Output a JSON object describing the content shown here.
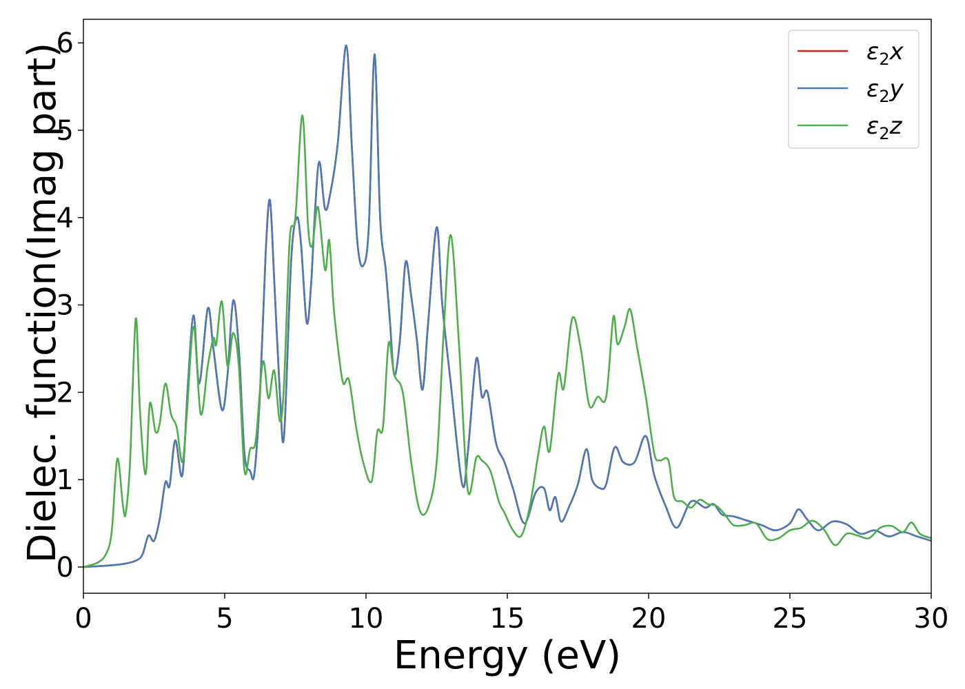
{
  "chart_data": {
    "type": "line",
    "title": "",
    "xlabel": "Energy (eV)",
    "ylabel": "Dielec. function(Imag part)",
    "xlim": [
      0,
      30
    ],
    "ylim": [
      -0.3,
      6.27
    ],
    "xticks": [
      0,
      5,
      10,
      15,
      20,
      25,
      30
    ],
    "yticks": [
      0,
      1,
      2,
      3,
      4,
      5,
      6
    ],
    "grid": false,
    "legend_position": "top-right",
    "series": [
      {
        "name": "ε₂x",
        "legend_base": "ε",
        "legend_sub": "2",
        "legend_var": "x",
        "color": "#e41a1c",
        "x": [
          0,
          1,
          1.5,
          1.9,
          2.1,
          2.3,
          2.5,
          2.7,
          2.9,
          3.05,
          3.25,
          3.5,
          3.7,
          3.9,
          4.1,
          4.4,
          4.6,
          4.9,
          5.1,
          5.3,
          5.5,
          5.7,
          5.9,
          6.05,
          6.25,
          6.45,
          6.6,
          6.75,
          6.95,
          7.1,
          7.35,
          7.55,
          7.7,
          7.9,
          8.05,
          8.2,
          8.35,
          8.55,
          8.75,
          9.0,
          9.3,
          9.5,
          9.7,
          9.9,
          10.1,
          10.3,
          10.5,
          10.7,
          10.85,
          11.0,
          11.2,
          11.4,
          11.6,
          11.8,
          12.0,
          12.2,
          12.5,
          12.7,
          13.0,
          13.4,
          13.6,
          13.9,
          14.1,
          14.3,
          14.6,
          14.9,
          15.2,
          15.6,
          16.0,
          16.3,
          16.5,
          16.7,
          16.9,
          17.2,
          17.5,
          17.8,
          18.0,
          18.3,
          18.5,
          18.8,
          19.1,
          19.5,
          19.9,
          20.2,
          20.6,
          21.0,
          21.5,
          22.0,
          22.3,
          22.6,
          23.0,
          23.5,
          24.0,
          24.5,
          25.0,
          25.3,
          25.6,
          26.0,
          26.5,
          27.0,
          27.5,
          28.0,
          28.5,
          29.0,
          29.5,
          30.0
        ],
        "y": [
          0,
          0.02,
          0.04,
          0.08,
          0.15,
          0.36,
          0.3,
          0.55,
          0.97,
          0.93,
          1.45,
          1.05,
          2.1,
          2.88,
          2.1,
          2.96,
          2.5,
          1.8,
          2.2,
          3.05,
          2.5,
          1.3,
          1.1,
          1.07,
          2.0,
          3.6,
          4.2,
          3.3,
          2.0,
          1.5,
          3.5,
          4.0,
          3.7,
          2.8,
          3.2,
          4.1,
          4.64,
          4.1,
          4.3,
          4.85,
          5.97,
          4.8,
          3.7,
          3.45,
          3.9,
          5.87,
          4.0,
          3.4,
          2.8,
          2.2,
          2.6,
          3.49,
          3.1,
          2.6,
          2.03,
          2.8,
          3.89,
          3.0,
          2.1,
          0.95,
          1.3,
          2.38,
          1.95,
          2.0,
          1.42,
          1.2,
          0.9,
          0.5,
          0.85,
          0.9,
          0.65,
          0.8,
          0.52,
          0.7,
          0.95,
          1.35,
          1.0,
          0.9,
          0.95,
          1.37,
          1.2,
          1.2,
          1.5,
          1.05,
          0.7,
          0.45,
          0.75,
          0.68,
          0.72,
          0.6,
          0.58,
          0.53,
          0.48,
          0.42,
          0.5,
          0.66,
          0.55,
          0.42,
          0.52,
          0.49,
          0.38,
          0.42,
          0.35,
          0.4,
          0.35,
          0.3
        ]
      },
      {
        "name": "ε₂y",
        "legend_base": "ε",
        "legend_sub": "2",
        "legend_var": "y",
        "color": "#4a7ab7",
        "x": [
          0,
          1,
          1.5,
          1.9,
          2.1,
          2.3,
          2.5,
          2.7,
          2.9,
          3.05,
          3.25,
          3.5,
          3.7,
          3.9,
          4.1,
          4.4,
          4.6,
          4.9,
          5.1,
          5.3,
          5.5,
          5.7,
          5.9,
          6.05,
          6.25,
          6.45,
          6.6,
          6.75,
          6.95,
          7.1,
          7.35,
          7.55,
          7.7,
          7.9,
          8.05,
          8.2,
          8.35,
          8.55,
          8.75,
          9.0,
          9.3,
          9.5,
          9.7,
          9.9,
          10.1,
          10.3,
          10.5,
          10.7,
          10.85,
          11.0,
          11.2,
          11.4,
          11.6,
          11.8,
          12.0,
          12.2,
          12.5,
          12.7,
          13.0,
          13.4,
          13.6,
          13.9,
          14.1,
          14.3,
          14.6,
          14.9,
          15.2,
          15.6,
          16.0,
          16.3,
          16.5,
          16.7,
          16.9,
          17.2,
          17.5,
          17.8,
          18.0,
          18.3,
          18.5,
          18.8,
          19.1,
          19.5,
          19.9,
          20.2,
          20.6,
          21.0,
          21.5,
          22.0,
          22.3,
          22.6,
          23.0,
          23.5,
          24.0,
          24.5,
          25.0,
          25.3,
          25.6,
          26.0,
          26.5,
          27.0,
          27.5,
          28.0,
          28.5,
          29.0,
          29.5,
          30.0
        ],
        "y": [
          0,
          0.02,
          0.04,
          0.08,
          0.15,
          0.36,
          0.3,
          0.55,
          0.97,
          0.93,
          1.45,
          1.05,
          2.1,
          2.88,
          2.1,
          2.96,
          2.5,
          1.8,
          2.2,
          3.05,
          2.5,
          1.3,
          1.1,
          1.07,
          2.0,
          3.6,
          4.2,
          3.3,
          2.0,
          1.5,
          3.5,
          4.0,
          3.7,
          2.8,
          3.2,
          4.1,
          4.64,
          4.1,
          4.3,
          4.85,
          5.97,
          4.8,
          3.7,
          3.45,
          3.9,
          5.87,
          4.0,
          3.4,
          2.8,
          2.2,
          2.6,
          3.49,
          3.1,
          2.6,
          2.03,
          2.8,
          3.89,
          3.0,
          2.1,
          0.95,
          1.3,
          2.38,
          1.95,
          2.0,
          1.42,
          1.2,
          0.9,
          0.5,
          0.85,
          0.9,
          0.65,
          0.8,
          0.52,
          0.7,
          0.95,
          1.35,
          1.0,
          0.9,
          0.95,
          1.37,
          1.2,
          1.2,
          1.5,
          1.05,
          0.7,
          0.45,
          0.75,
          0.68,
          0.72,
          0.6,
          0.58,
          0.53,
          0.48,
          0.42,
          0.5,
          0.66,
          0.55,
          0.42,
          0.52,
          0.49,
          0.38,
          0.42,
          0.35,
          0.4,
          0.35,
          0.3
        ]
      },
      {
        "name": "ε₂z",
        "legend_base": "ε",
        "legend_sub": "2",
        "legend_var": "z",
        "color": "#4daf4a",
        "x": [
          0,
          0.5,
          0.8,
          1.0,
          1.2,
          1.4,
          1.5,
          1.65,
          1.85,
          2.0,
          2.2,
          2.35,
          2.55,
          2.7,
          2.9,
          3.1,
          3.3,
          3.5,
          3.65,
          3.9,
          4.15,
          4.4,
          4.6,
          4.7,
          4.9,
          5.1,
          5.3,
          5.5,
          5.7,
          5.9,
          6.1,
          6.35,
          6.55,
          6.75,
          6.95,
          7.1,
          7.3,
          7.5,
          7.75,
          7.95,
          8.1,
          8.3,
          8.55,
          8.7,
          8.85,
          9.05,
          9.2,
          9.4,
          9.65,
          9.9,
          10.2,
          10.4,
          10.6,
          10.8,
          11.0,
          11.3,
          11.6,
          11.9,
          12.2,
          12.5,
          12.75,
          13.0,
          13.3,
          13.6,
          13.9,
          14.1,
          14.4,
          14.7,
          14.9,
          15.2,
          15.5,
          15.8,
          16.1,
          16.3,
          16.5,
          16.8,
          17.0,
          17.3,
          17.6,
          17.9,
          18.2,
          18.5,
          18.75,
          18.9,
          19.15,
          19.35,
          19.6,
          19.9,
          20.2,
          20.4,
          20.7,
          20.9,
          21.2,
          21.5,
          21.8,
          22.1,
          22.4,
          22.7,
          23.0,
          23.4,
          23.8,
          24.2,
          24.6,
          25.0,
          25.4,
          25.8,
          26.2,
          26.6,
          27.0,
          27.4,
          27.8,
          28.2,
          28.6,
          29.0,
          29.3,
          29.6,
          30.0
        ],
        "y": [
          0,
          0.05,
          0.15,
          0.4,
          1.24,
          0.7,
          0.62,
          1.2,
          2.84,
          1.8,
          1.06,
          1.87,
          1.55,
          1.64,
          2.1,
          1.75,
          1.6,
          1.2,
          1.7,
          2.75,
          1.75,
          2.3,
          2.62,
          2.55,
          3.04,
          2.3,
          2.68,
          2.3,
          1.1,
          1.35,
          1.45,
          2.35,
          1.93,
          2.25,
          1.67,
          2.1,
          3.75,
          4.0,
          5.17,
          3.9,
          3.68,
          4.12,
          3.4,
          3.74,
          3.0,
          2.4,
          2.1,
          2.14,
          1.6,
          1.2,
          0.98,
          1.55,
          1.6,
          2.56,
          2.2,
          2.0,
          1.2,
          0.65,
          0.68,
          1.2,
          2.7,
          3.8,
          2.5,
          0.88,
          1.25,
          1.22,
          1.1,
          0.75,
          0.62,
          0.42,
          0.36,
          0.7,
          1.3,
          1.61,
          1.33,
          2.2,
          2.05,
          2.85,
          2.5,
          1.85,
          1.95,
          1.95,
          2.86,
          2.55,
          2.75,
          2.95,
          2.5,
          1.95,
          1.3,
          1.22,
          1.22,
          0.8,
          0.75,
          0.68,
          0.77,
          0.72,
          0.7,
          0.6,
          0.48,
          0.48,
          0.5,
          0.32,
          0.33,
          0.42,
          0.45,
          0.53,
          0.43,
          0.25,
          0.38,
          0.36,
          0.33,
          0.45,
          0.47,
          0.4,
          0.51,
          0.38,
          0.33
        ]
      }
    ]
  }
}
